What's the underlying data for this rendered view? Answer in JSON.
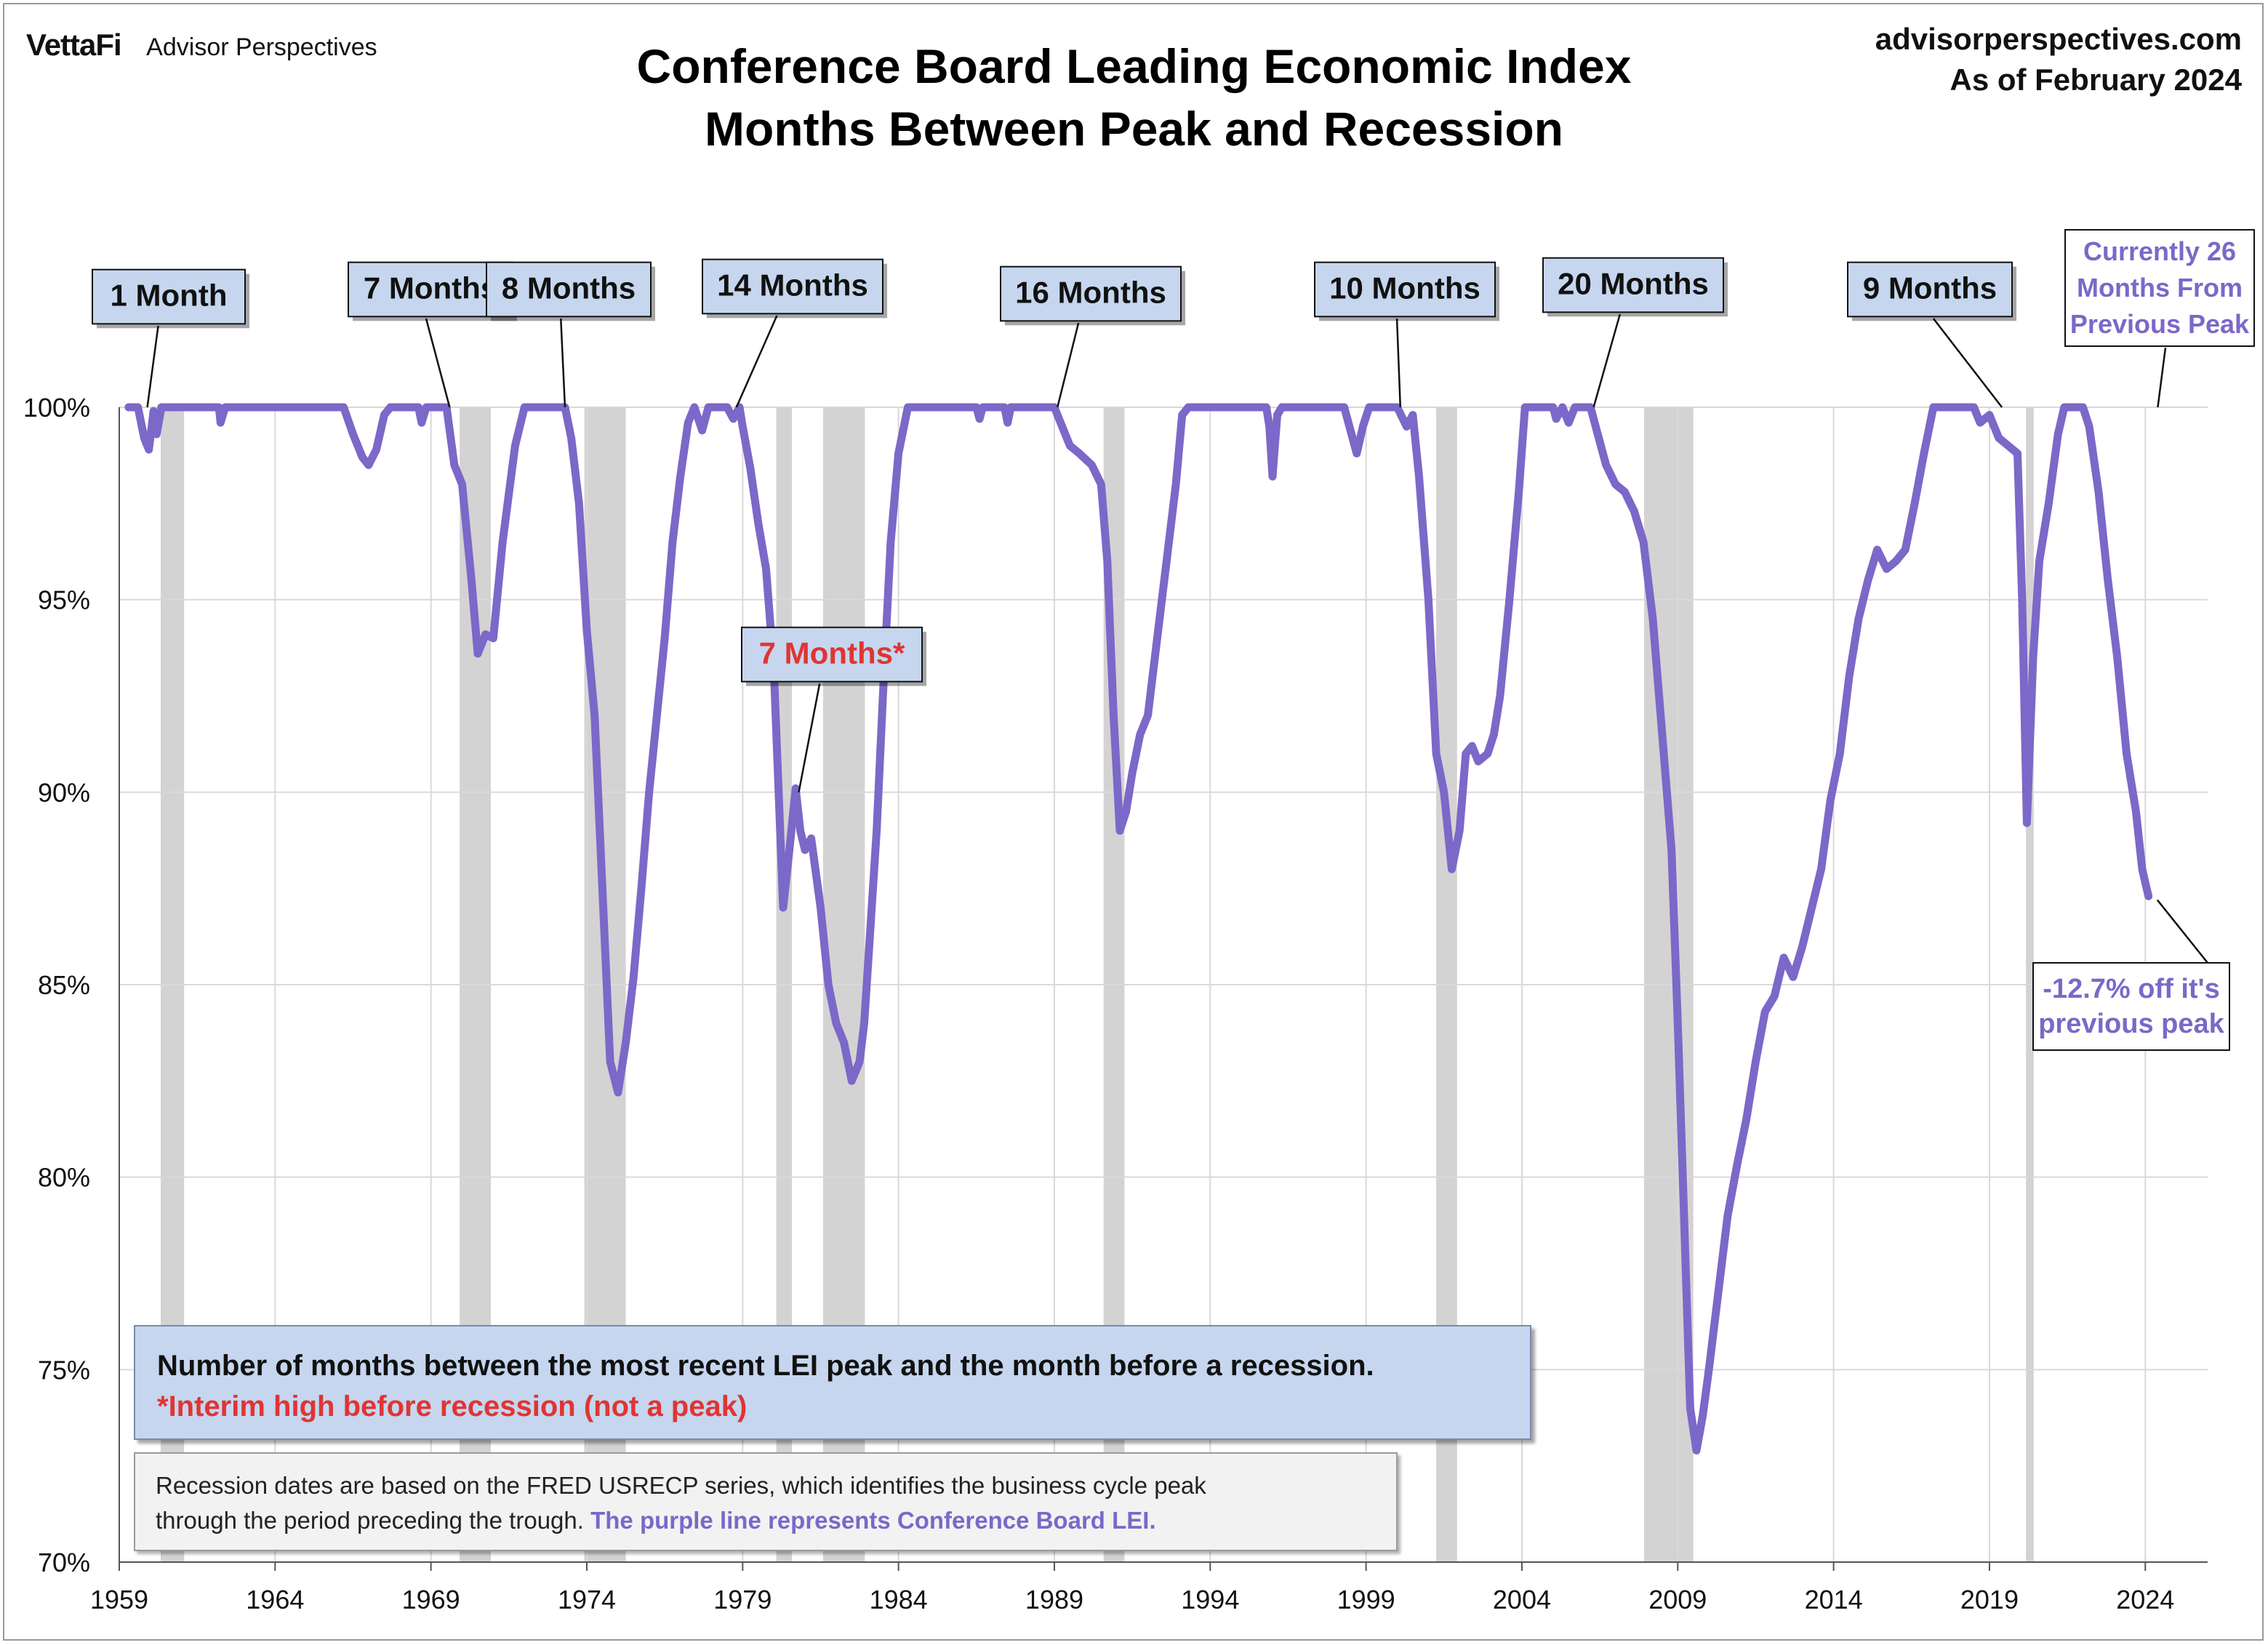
{
  "brand": {
    "logo": "VettaFi",
    "name": "Advisor Perspectives"
  },
  "header": {
    "title_line1": "Conference Board Leading Economic Index",
    "title_line2": "Months Between Peak and Recession",
    "site": "advisorperspectives.com",
    "as_of": "As of February 2024"
  },
  "note": {
    "line1": "Number of months between the most recent LEI peak and the month before a recession.",
    "line2": "*Interim high before recession (not a peak)"
  },
  "source": {
    "line1": "Recession dates are based on the FRED USRECP series, which identifies the business cycle peak",
    "line2_plain": "through the period preceding the trough.",
    "line2_highlight": " The purple line represents Conference Board LEI."
  },
  "colors": {
    "line": "#7b68c8",
    "recession": "#d3d3d3",
    "label_box": "#c5d6ee",
    "red": "#e03434"
  },
  "chart_data": {
    "type": "line",
    "xlim": [
      1959,
      2026
    ],
    "ylim": [
      70,
      100
    ],
    "x_ticks": [
      "1959",
      "1964",
      "1969",
      "1974",
      "1979",
      "1984",
      "1989",
      "1994",
      "1999",
      "2004",
      "2009",
      "2014",
      "2019",
      "2024"
    ],
    "y_ticks": [
      {
        "v": 100,
        "label": "100%"
      },
      {
        "v": 95,
        "label": "95%"
      },
      {
        "v": 90,
        "label": "90%"
      },
      {
        "v": 85,
        "label": "85%"
      },
      {
        "v": 80,
        "label": "80%"
      },
      {
        "v": 75,
        "label": "75%"
      },
      {
        "v": 70,
        "label": "70%"
      }
    ],
    "grid": true,
    "recessions": [
      [
        1960.33,
        1961.08
      ],
      [
        1969.92,
        1970.92
      ],
      [
        1973.92,
        1975.25
      ],
      [
        1980.08,
        1980.58
      ],
      [
        1981.58,
        1982.92
      ],
      [
        1990.58,
        1991.25
      ],
      [
        2001.25,
        2001.92
      ],
      [
        2007.92,
        2009.5
      ],
      [
        2020.17,
        2020.42
      ]
    ],
    "series": [
      {
        "points": [
          [
            1959.3,
            100
          ],
          [
            1959.6,
            100
          ],
          [
            1959.8,
            99.2
          ],
          [
            1959.95,
            98.9
          ],
          [
            1960.1,
            99.9
          ],
          [
            1960.2,
            99.3
          ],
          [
            1960.35,
            100
          ],
          [
            1961.5,
            100
          ],
          [
            1962.2,
            100
          ],
          [
            1962.25,
            99.6
          ],
          [
            1962.4,
            100
          ],
          [
            1966.2,
            100
          ],
          [
            1966.5,
            99.3
          ],
          [
            1966.8,
            98.7
          ],
          [
            1967.0,
            98.5
          ],
          [
            1967.25,
            98.9
          ],
          [
            1967.5,
            99.8
          ],
          [
            1967.7,
            100
          ],
          [
            1968.6,
            100
          ],
          [
            1968.7,
            99.6
          ],
          [
            1968.85,
            100
          ],
          [
            1969.5,
            100
          ],
          [
            1969.75,
            98.5
          ],
          [
            1970.0,
            98.0
          ],
          [
            1970.3,
            95.5
          ],
          [
            1970.5,
            93.6
          ],
          [
            1970.75,
            94.1
          ],
          [
            1971.0,
            94.0
          ],
          [
            1971.3,
            96.5
          ],
          [
            1971.7,
            99.0
          ],
          [
            1972.0,
            100
          ],
          [
            1973.3,
            100
          ],
          [
            1973.5,
            99.2
          ],
          [
            1973.75,
            97.5
          ],
          [
            1974.0,
            94.2
          ],
          [
            1974.25,
            92.0
          ],
          [
            1974.5,
            87.5
          ],
          [
            1974.75,
            83.0
          ],
          [
            1975.0,
            82.2
          ],
          [
            1975.25,
            83.5
          ],
          [
            1975.5,
            85.2
          ],
          [
            1975.75,
            87.5
          ],
          [
            1976.0,
            90.0
          ],
          [
            1976.25,
            92.0
          ],
          [
            1976.5,
            94.0
          ],
          [
            1976.75,
            96.5
          ],
          [
            1977.0,
            98.2
          ],
          [
            1977.25,
            99.6
          ],
          [
            1977.45,
            100
          ],
          [
            1977.7,
            99.4
          ],
          [
            1977.9,
            100
          ],
          [
            1978.5,
            100
          ],
          [
            1978.7,
            99.7
          ],
          [
            1978.9,
            100
          ],
          [
            1979.0,
            99.5
          ],
          [
            1979.25,
            98.4
          ],
          [
            1979.5,
            97.0
          ],
          [
            1979.75,
            95.8
          ],
          [
            1980.0,
            93.2
          ],
          [
            1980.3,
            87.0
          ],
          [
            1980.5,
            88.5
          ],
          [
            1980.7,
            90.1
          ],
          [
            1980.85,
            89.0
          ],
          [
            1981.0,
            88.5
          ],
          [
            1981.2,
            88.8
          ],
          [
            1981.5,
            87.0
          ],
          [
            1981.75,
            85.0
          ],
          [
            1982.0,
            84.0
          ],
          [
            1982.25,
            83.5
          ],
          [
            1982.5,
            82.5
          ],
          [
            1982.75,
            83.0
          ],
          [
            1982.9,
            84.0
          ],
          [
            1983.1,
            86.5
          ],
          [
            1983.3,
            89.0
          ],
          [
            1983.5,
            92.5
          ],
          [
            1983.75,
            96.5
          ],
          [
            1984.0,
            98.8
          ],
          [
            1984.3,
            100
          ],
          [
            1986.5,
            100
          ],
          [
            1986.6,
            99.7
          ],
          [
            1986.7,
            100
          ],
          [
            1987.4,
            100
          ],
          [
            1987.5,
            99.6
          ],
          [
            1987.6,
            100
          ],
          [
            1989.0,
            100
          ],
          [
            1989.2,
            99.6
          ],
          [
            1989.5,
            99.0
          ],
          [
            1989.8,
            98.8
          ],
          [
            1990.2,
            98.5
          ],
          [
            1990.5,
            98.0
          ],
          [
            1990.7,
            96.0
          ],
          [
            1990.9,
            92.0
          ],
          [
            1991.1,
            89.0
          ],
          [
            1991.3,
            89.5
          ],
          [
            1991.5,
            90.5
          ],
          [
            1991.75,
            91.5
          ],
          [
            1992.0,
            92.0
          ],
          [
            1992.3,
            94.0
          ],
          [
            1992.6,
            96.0
          ],
          [
            1992.9,
            98.0
          ],
          [
            1993.1,
            99.8
          ],
          [
            1993.3,
            100
          ],
          [
            1995.8,
            100
          ],
          [
            1995.9,
            99.5
          ],
          [
            1996.0,
            98.2
          ],
          [
            1996.15,
            99.8
          ],
          [
            1996.3,
            100
          ],
          [
            1998.3,
            100
          ],
          [
            1998.5,
            99.4
          ],
          [
            1998.7,
            98.8
          ],
          [
            1998.9,
            99.5
          ],
          [
            1999.1,
            100
          ],
          [
            2000.0,
            100
          ],
          [
            2000.3,
            99.5
          ],
          [
            2000.5,
            99.8
          ],
          [
            2000.7,
            98.2
          ],
          [
            2001.0,
            95.0
          ],
          [
            2001.25,
            91.0
          ],
          [
            2001.5,
            90.0
          ],
          [
            2001.75,
            88.0
          ],
          [
            2002.0,
            89.0
          ],
          [
            2002.2,
            91.0
          ],
          [
            2002.4,
            91.2
          ],
          [
            2002.6,
            90.8
          ],
          [
            2002.9,
            91.0
          ],
          [
            2003.1,
            91.5
          ],
          [
            2003.3,
            92.5
          ],
          [
            2003.6,
            95.0
          ],
          [
            2003.9,
            97.8
          ],
          [
            2004.1,
            100
          ],
          [
            2005.0,
            100
          ],
          [
            2005.1,
            99.7
          ],
          [
            2005.3,
            100
          ],
          [
            2005.5,
            99.6
          ],
          [
            2005.7,
            100
          ],
          [
            2006.2,
            100
          ],
          [
            2006.4,
            99.4
          ],
          [
            2006.7,
            98.5
          ],
          [
            2007.0,
            98.0
          ],
          [
            2007.3,
            97.8
          ],
          [
            2007.6,
            97.3
          ],
          [
            2007.9,
            96.5
          ],
          [
            2008.2,
            94.5
          ],
          [
            2008.5,
            91.5
          ],
          [
            2008.8,
            88.5
          ],
          [
            2009.0,
            84.0
          ],
          [
            2009.2,
            79.0
          ],
          [
            2009.4,
            74.0
          ],
          [
            2009.6,
            72.9
          ],
          [
            2009.8,
            73.8
          ],
          [
            2010.0,
            75.0
          ],
          [
            2010.3,
            77.0
          ],
          [
            2010.6,
            79.0
          ],
          [
            2010.9,
            80.3
          ],
          [
            2011.2,
            81.5
          ],
          [
            2011.5,
            83.0
          ],
          [
            2011.8,
            84.3
          ],
          [
            2012.1,
            84.7
          ],
          [
            2012.4,
            85.7
          ],
          [
            2012.7,
            85.2
          ],
          [
            2013.0,
            86.0
          ],
          [
            2013.3,
            87.0
          ],
          [
            2013.6,
            88.0
          ],
          [
            2013.9,
            89.8
          ],
          [
            2014.2,
            91.0
          ],
          [
            2014.5,
            93.0
          ],
          [
            2014.8,
            94.5
          ],
          [
            2015.1,
            95.5
          ],
          [
            2015.4,
            96.3
          ],
          [
            2015.7,
            95.8
          ],
          [
            2016.0,
            96.0
          ],
          [
            2016.3,
            96.3
          ],
          [
            2016.6,
            97.5
          ],
          [
            2016.9,
            98.8
          ],
          [
            2017.2,
            100
          ],
          [
            2018.0,
            100
          ],
          [
            2018.5,
            100
          ],
          [
            2018.7,
            99.6
          ],
          [
            2019.0,
            99.8
          ],
          [
            2019.3,
            99.2
          ],
          [
            2019.6,
            99.0
          ],
          [
            2019.9,
            98.8
          ],
          [
            2020.05,
            95.0
          ],
          [
            2020.2,
            89.2
          ],
          [
            2020.4,
            93.5
          ],
          [
            2020.6,
            96.0
          ],
          [
            2020.9,
            97.5
          ],
          [
            2021.2,
            99.3
          ],
          [
            2021.4,
            100
          ],
          [
            2022.0,
            100
          ],
          [
            2022.2,
            99.5
          ],
          [
            2022.5,
            97.8
          ],
          [
            2022.8,
            95.5
          ],
          [
            2023.1,
            93.5
          ],
          [
            2023.4,
            91.0
          ],
          [
            2023.7,
            89.5
          ],
          [
            2023.9,
            88.0
          ],
          [
            2024.1,
            87.3
          ]
        ]
      }
    ],
    "annotations": [
      {
        "label": "1 Month",
        "target": [
          1959.9,
          100
        ],
        "red": false
      },
      {
        "label": "7 Months",
        "target": [
          1969.6,
          100
        ],
        "red": false
      },
      {
        "label": "8 Months",
        "target": [
          1973.3,
          100
        ],
        "red": false
      },
      {
        "label": "14 Months",
        "target": [
          1978.8,
          100
        ],
        "red": false
      },
      {
        "label": "16 Months",
        "target": [
          1989.1,
          100
        ],
        "red": false
      },
      {
        "label": "10 Months",
        "target": [
          2000.1,
          100
        ],
        "red": false
      },
      {
        "label": "20 Months",
        "target": [
          2006.3,
          100
        ],
        "red": false
      },
      {
        "label": "9 Months",
        "target": [
          2019.4,
          100
        ],
        "red": false
      },
      {
        "label": "7 Months*",
        "target": [
          1980.8,
          90
        ],
        "red": true
      }
    ],
    "current_note": {
      "lines": [
        "Currently 26",
        "Months From",
        "Previous Peak"
      ],
      "target": [
        2024.4,
        100
      ]
    },
    "drop_note": {
      "lines": [
        "-12.7% off it's",
        "previous peak"
      ],
      "target": [
        2024.2,
        87.2
      ]
    }
  }
}
